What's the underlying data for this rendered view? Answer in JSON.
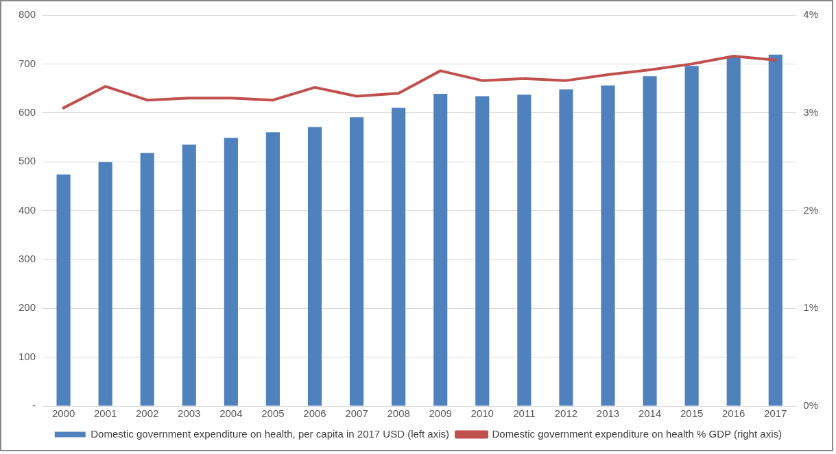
{
  "chart_data": {
    "type": "bar",
    "categories": [
      "2000",
      "2001",
      "2002",
      "2003",
      "2004",
      "2005",
      "2006",
      "2007",
      "2008",
      "2009",
      "2010",
      "2011",
      "2012",
      "2013",
      "2014",
      "2015",
      "2016",
      "2017"
    ],
    "series": [
      {
        "name": "Domestic government expenditure on health, per capita in 2017 USD (left axis)",
        "color": "#4f81bd",
        "values": [
          474,
          499,
          518,
          535,
          549,
          560,
          571,
          591,
          610,
          639,
          634,
          637,
          648,
          656,
          675,
          696,
          713,
          719
        ]
      },
      {
        "name": "Domestic government expenditure on health % GDP (right axis)",
        "type": "line",
        "axis": "y2",
        "color": "#c0504d",
        "values": [
          3.05,
          3.27,
          3.13,
          3.15,
          3.15,
          3.13,
          3.26,
          3.17,
          3.2,
          3.43,
          3.33,
          3.35,
          3.33,
          3.39,
          3.44,
          3.5,
          3.58,
          3.54
        ]
      }
    ],
    "ylim": [
      0,
      800
    ],
    "yticks": [
      {
        "value": 0,
        "label": "-"
      },
      100,
      200,
      300,
      400,
      500,
      600,
      700,
      800
    ],
    "y2lim": [
      0,
      4
    ],
    "y2ticks": [
      {
        "value": 0,
        "label": "0%"
      },
      {
        "value": 1,
        "label": "1%"
      },
      {
        "value": 2,
        "label": "2%"
      },
      {
        "value": 3,
        "label": "3%"
      },
      {
        "value": 4,
        "label": "4%"
      }
    ],
    "grid": "y",
    "legend": "bottom",
    "marker": "none",
    "line_style": "solid"
  }
}
